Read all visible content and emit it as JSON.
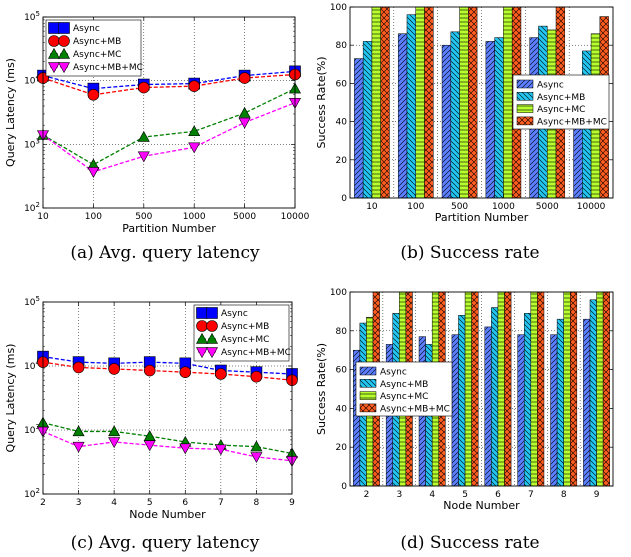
{
  "figure": {
    "captions": [
      "(a) Avg. query latency",
      "(b) Success rate",
      "(c) Avg. query latency",
      "(d) Success rate"
    ]
  },
  "chart_data": [
    {
      "type": "line",
      "xlabel": "Partition Number",
      "ylabel": "Query Latency (ms)",
      "yscale": "log",
      "ylim": [
        100,
        100000
      ],
      "ytick_labels": [
        "10^2",
        "10^3",
        "10^4",
        "10^5"
      ],
      "x": [
        "10",
        "100",
        "500",
        "1000",
        "5000",
        "10000"
      ],
      "grid": true,
      "legend_position": "top-left",
      "series": [
        {
          "name": "Async",
          "color": "#0000ff",
          "marker": "square",
          "values": [
            12000,
            7500,
            8700,
            9000,
            12000,
            14000
          ]
        },
        {
          "name": "Async+MB",
          "color": "#ff0000",
          "marker": "circle",
          "values": [
            11000,
            6000,
            7800,
            8200,
            11000,
            12500
          ]
        },
        {
          "name": "Async+MC",
          "color": "#008000",
          "marker": "triangle-up",
          "values": [
            1400,
            480,
            1300,
            1600,
            3100,
            7500
          ]
        },
        {
          "name": "Async+MB+MC",
          "color": "#ff00ff",
          "marker": "triangle-down",
          "values": [
            1400,
            370,
            650,
            900,
            2200,
            4500
          ]
        }
      ]
    },
    {
      "type": "bar",
      "xlabel": "Partition Number",
      "ylabel": "Success Rate(%)",
      "ylim": [
        0,
        100
      ],
      "yticks": [
        0,
        20,
        40,
        60,
        80,
        100
      ],
      "categories": [
        "10",
        "100",
        "500",
        "1000",
        "5000",
        "10000"
      ],
      "grid": true,
      "legend_position": "center-right",
      "series": [
        {
          "name": "Async",
          "color": "#5b7fff",
          "values": [
            73,
            86,
            80,
            82,
            84,
            45
          ]
        },
        {
          "name": "Async+MB",
          "color": "#22c4f0",
          "values": [
            82,
            96,
            87,
            84,
            90,
            77
          ]
        },
        {
          "name": "Async+MC",
          "color": "#b8ff2e",
          "values": [
            100,
            100,
            100,
            100,
            88,
            86
          ]
        },
        {
          "name": "Async+MB+MC",
          "color": "#ff5c1f",
          "values": [
            100,
            100,
            100,
            100,
            100,
            95
          ]
        }
      ]
    },
    {
      "type": "line",
      "xlabel": "Node Number",
      "ylabel": "Query Latency (ms)",
      "yscale": "log",
      "ylim": [
        100,
        100000
      ],
      "ytick_labels": [
        "10^2",
        "10^3",
        "10^4",
        "10^5"
      ],
      "x": [
        "2",
        "3",
        "4",
        "5",
        "6",
        "7",
        "8",
        "9"
      ],
      "grid": true,
      "legend_position": "top-right",
      "series": [
        {
          "name": "Async",
          "color": "#0000ff",
          "marker": "square",
          "values": [
            14000,
            11500,
            11000,
            11500,
            11000,
            8500,
            8000,
            7500
          ]
        },
        {
          "name": "Async+MB",
          "color": "#ff0000",
          "marker": "circle",
          "values": [
            11500,
            9500,
            9000,
            8500,
            8000,
            7500,
            6800,
            6000
          ]
        },
        {
          "name": "Async+MC",
          "color": "#008000",
          "marker": "triangle-up",
          "values": [
            1300,
            950,
            950,
            800,
            650,
            580,
            550,
            430
          ]
        },
        {
          "name": "Async+MB+MC",
          "color": "#ff00ff",
          "marker": "triangle-down",
          "values": [
            950,
            550,
            650,
            580,
            520,
            500,
            380,
            330
          ]
        }
      ]
    },
    {
      "type": "bar",
      "xlabel": "Node Number",
      "ylabel": "Success Rate(%)",
      "ylim": [
        0,
        100
      ],
      "yticks": [
        0,
        20,
        40,
        60,
        80,
        100
      ],
      "categories": [
        "2",
        "3",
        "4",
        "5",
        "6",
        "7",
        "8",
        "9"
      ],
      "grid": true,
      "legend_position": "center-left",
      "series": [
        {
          "name": "Async",
          "color": "#5b7fff",
          "values": [
            70,
            73,
            77,
            78,
            82,
            78,
            78,
            86
          ]
        },
        {
          "name": "Async+MB",
          "color": "#22c4f0",
          "values": [
            84,
            89,
            73,
            88,
            92,
            89,
            86,
            96
          ]
        },
        {
          "name": "Async+MC",
          "color": "#b8ff2e",
          "values": [
            87,
            100,
            100,
            100,
            100,
            100,
            100,
            100
          ]
        },
        {
          "name": "Async+MB+MC",
          "color": "#ff5c1f",
          "values": [
            100,
            100,
            100,
            100,
            100,
            100,
            100,
            100
          ]
        }
      ]
    }
  ]
}
